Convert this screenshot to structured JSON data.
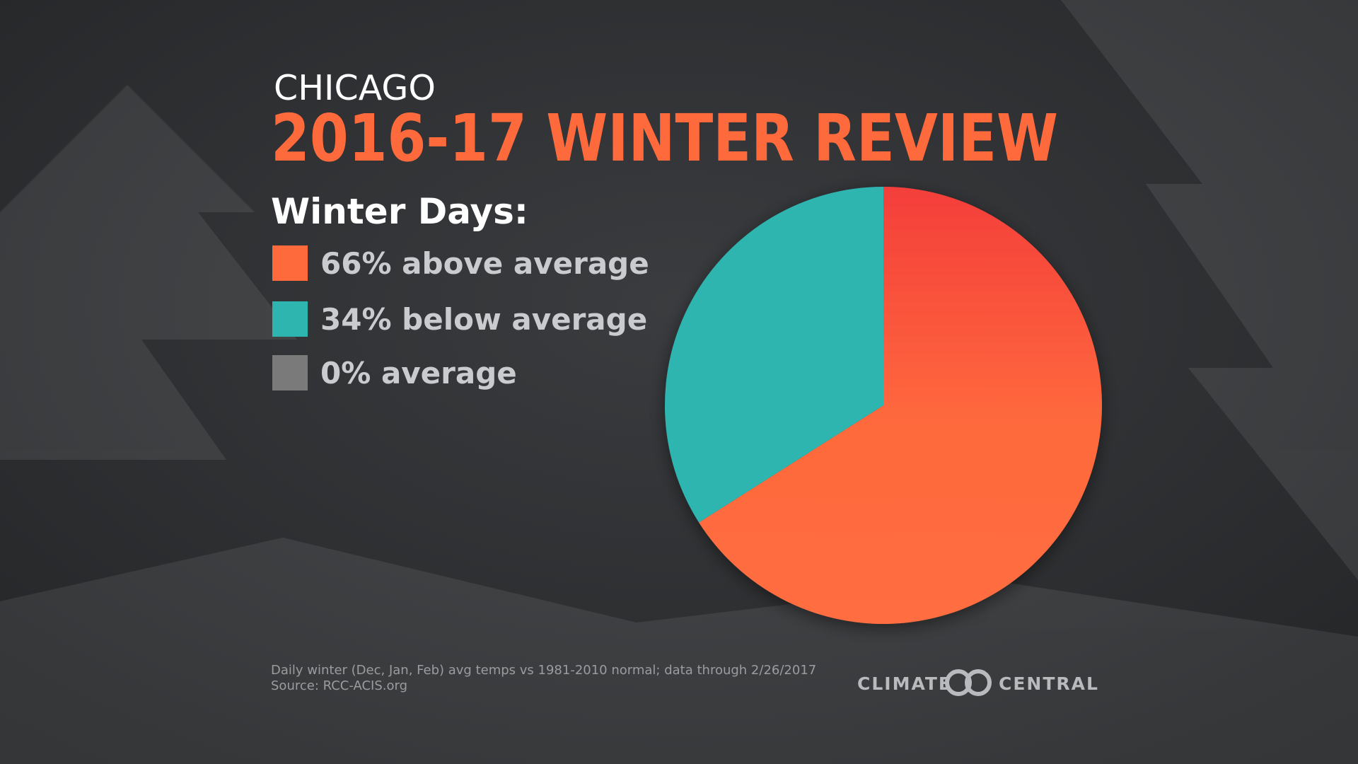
{
  "chart_data": {
    "type": "pie",
    "pretitle": "CHICAGO",
    "title": "2016-17 WINTER REVIEW",
    "legend_title": "Winter Days:",
    "categories": [
      "above average",
      "below average",
      "average"
    ],
    "values": [
      66,
      34,
      0
    ],
    "value_labels": [
      "66%",
      "34%",
      "0%"
    ],
    "colors": [
      "#ff6a3d",
      "#2fb5b0",
      "#7a7a7a"
    ],
    "note": "Daily winter (Dec, Jan, Feb) avg temps vs 1981-2010 normal; data through 2/26/2017",
    "source": "Source: RCC-ACIS.org"
  },
  "brand": {
    "left": "CLIMATE",
    "right": "CENTRAL"
  }
}
